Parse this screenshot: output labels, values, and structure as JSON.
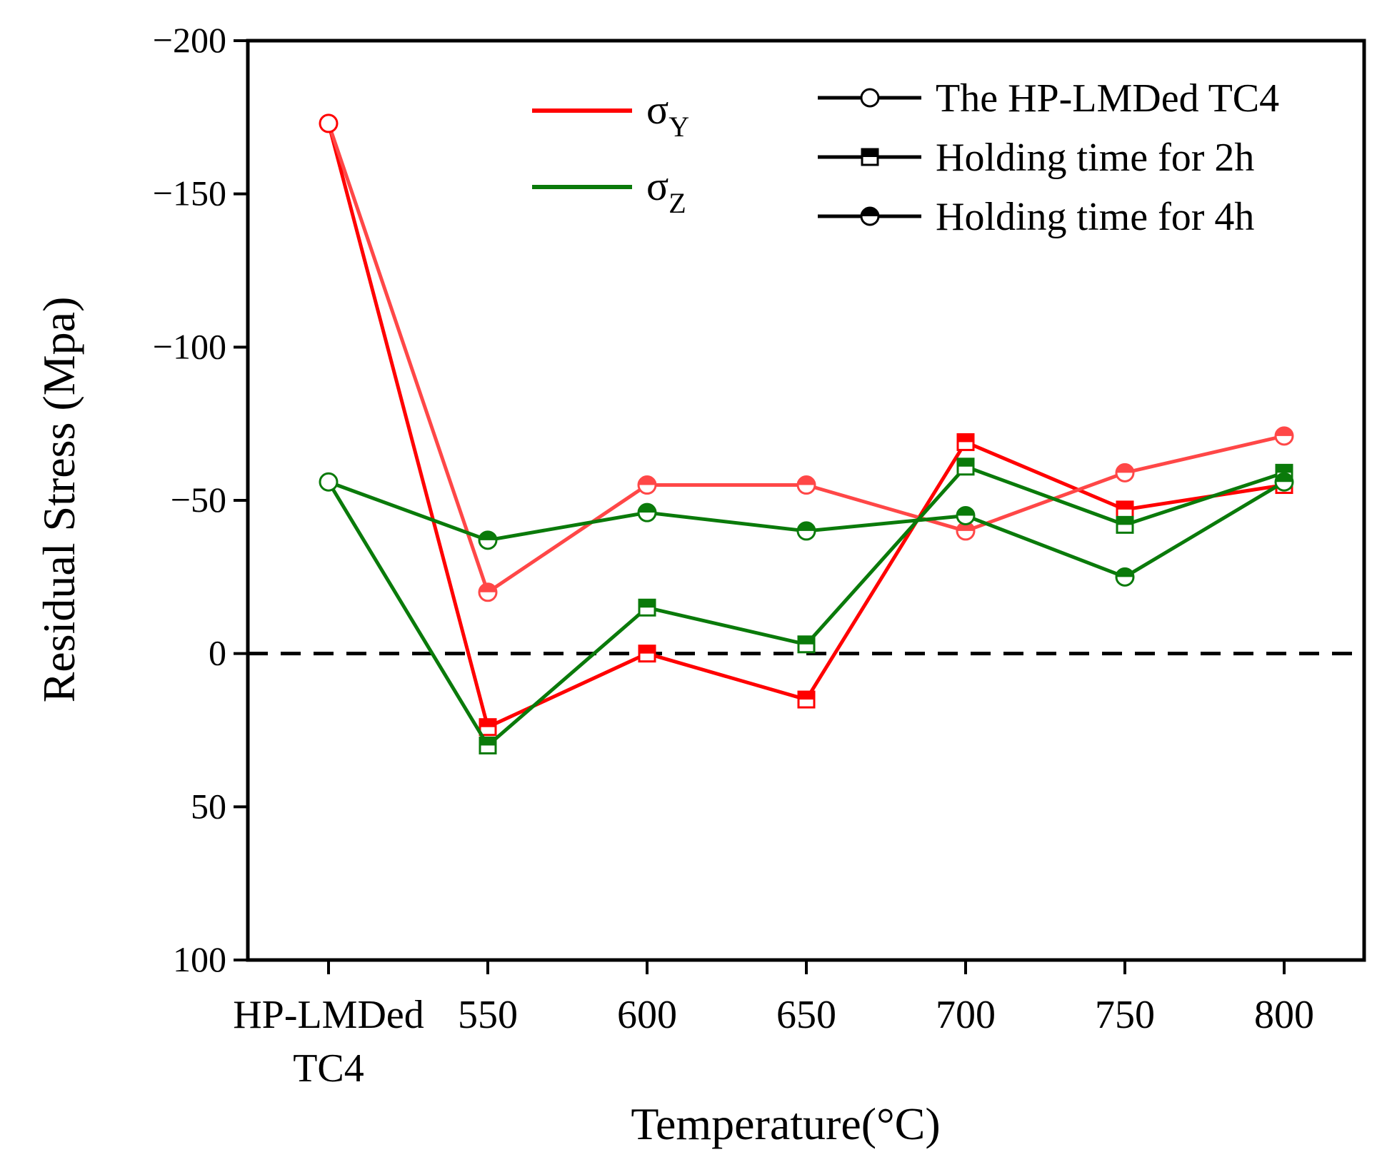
{
  "chart_data": {
    "type": "line",
    "title": "",
    "xlabel": "Temperature(°C)",
    "ylabel": "Residual Stress (Mpa)",
    "y_inverted": true,
    "ylim": [
      -200,
      100
    ],
    "y_ticks": [
      -200,
      -150,
      -100,
      -50,
      0,
      50,
      100
    ],
    "y_tick_labels": [
      "−200",
      "−150",
      "−100",
      "−50",
      "0",
      "50",
      "100"
    ],
    "categories": [
      {
        "top": "HP-LMDed",
        "bottom": "TC4"
      },
      {
        "top": "550",
        "bottom": ""
      },
      {
        "top": "600",
        "bottom": ""
      },
      {
        "top": "650",
        "bottom": ""
      },
      {
        "top": "700",
        "bottom": ""
      },
      {
        "top": "750",
        "bottom": ""
      },
      {
        "top": "800",
        "bottom": ""
      }
    ],
    "reference_line": {
      "y": 0,
      "style": "dashed",
      "color": "#000000"
    },
    "series": [
      {
        "name": "σY Holding time for 2h",
        "component": "Y",
        "hold": "2h",
        "color": "#ff0000",
        "marker": "square-half",
        "values": [
          -173,
          24,
          0,
          15,
          -69,
          -47,
          -55
        ]
      },
      {
        "name": "σY Holding time for 4h",
        "component": "Y",
        "hold": "4h",
        "color": "#ff4747",
        "marker": "circle-half",
        "values": [
          -173,
          -20,
          -55,
          -55,
          -40,
          -59,
          -71
        ]
      },
      {
        "name": "σZ Holding time for 2h",
        "component": "Z",
        "hold": "2h",
        "color": "#0a7a0a",
        "marker": "square-half",
        "values": [
          -56,
          30,
          -15,
          -3,
          -61,
          -42,
          -59
        ]
      },
      {
        "name": "σZ Holding time for 4h",
        "component": "Z",
        "hold": "4h",
        "color": "#0a7a0a",
        "marker": "circle-half",
        "values": [
          -56,
          -37,
          -46,
          -40,
          -45,
          -25,
          -56
        ]
      }
    ],
    "as_built_points": [
      {
        "component": "Y",
        "color": "#ff0000",
        "value": -173
      },
      {
        "component": "Z",
        "color": "#0a7a0a",
        "value": -56
      }
    ],
    "legend_components": [
      {
        "symbol": "σ",
        "subscript": "Y",
        "color": "#ff0000"
      },
      {
        "symbol": "σ",
        "subscript": "Z",
        "color": "#0a7a0a"
      }
    ],
    "legend_markers": [
      {
        "label": "The HP-LMDed TC4",
        "marker": "circle-open"
      },
      {
        "label": "Holding time for 2h",
        "marker": "square-half"
      },
      {
        "label": "Holding time for 4h",
        "marker": "circle-half"
      }
    ],
    "legend_position": "top-right"
  }
}
